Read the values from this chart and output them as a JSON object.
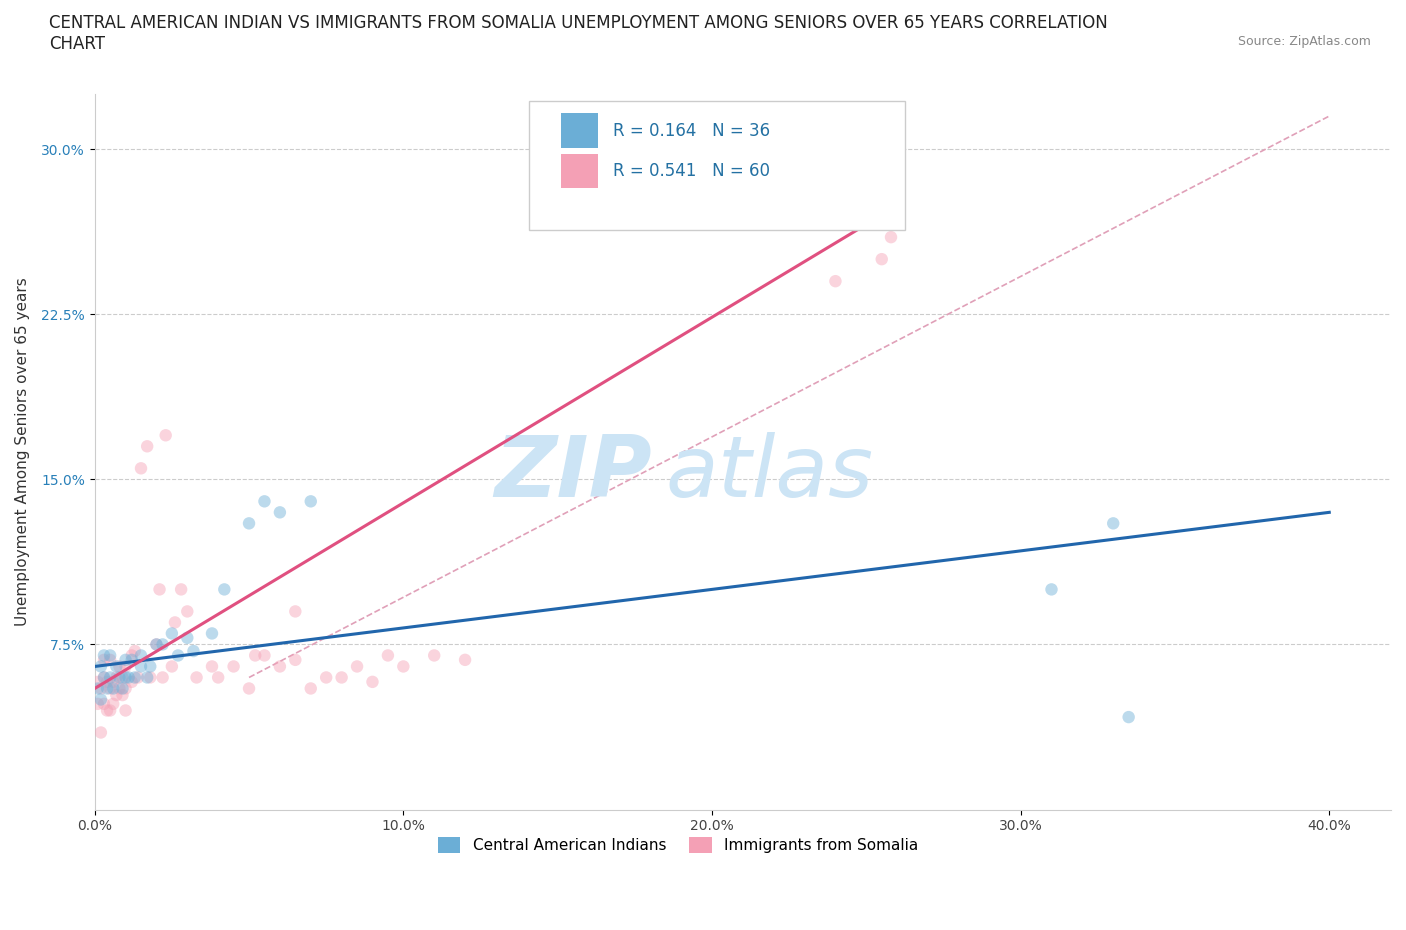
{
  "title_line1": "CENTRAL AMERICAN INDIAN VS IMMIGRANTS FROM SOMALIA UNEMPLOYMENT AMONG SENIORS OVER 65 YEARS CORRELATION",
  "title_line2": "CHART",
  "source": "Source: ZipAtlas.com",
  "ylabel": "Unemployment Among Seniors over 65 years",
  "xlim": [
    0.0,
    0.42
  ],
  "ylim": [
    0.0,
    0.325
  ],
  "xticks": [
    0.0,
    0.1,
    0.2,
    0.3,
    0.4
  ],
  "yticks": [
    0.075,
    0.15,
    0.225,
    0.3
  ],
  "xticklabels": [
    "0.0%",
    "10.0%",
    "20.0%",
    "30.0%",
    "40.0%"
  ],
  "yticklabels": [
    "7.5%",
    "15.0%",
    "22.5%",
    "30.0%"
  ],
  "blue_color": "#6baed6",
  "pink_color": "#f4a0b5",
  "blue_line_color": "#2166ac",
  "pink_line_color": "#e05080",
  "legend_label_blue": "Central American Indians",
  "legend_label_pink": "Immigrants from Somalia",
  "watermark_zip": "ZIP",
  "watermark_atlas": "atlas",
  "blue_scatter_x": [
    0.001,
    0.002,
    0.002,
    0.003,
    0.003,
    0.004,
    0.005,
    0.005,
    0.006,
    0.007,
    0.008,
    0.009,
    0.01,
    0.01,
    0.011,
    0.012,
    0.013,
    0.015,
    0.015,
    0.017,
    0.018,
    0.02,
    0.022,
    0.025,
    0.027,
    0.03,
    0.032,
    0.038,
    0.042,
    0.05,
    0.055,
    0.06,
    0.07,
    0.31,
    0.33,
    0.335
  ],
  "blue_scatter_y": [
    0.055,
    0.065,
    0.05,
    0.06,
    0.07,
    0.055,
    0.06,
    0.07,
    0.055,
    0.065,
    0.06,
    0.055,
    0.06,
    0.068,
    0.06,
    0.068,
    0.06,
    0.07,
    0.065,
    0.06,
    0.065,
    0.075,
    0.075,
    0.08,
    0.07,
    0.078,
    0.072,
    0.08,
    0.1,
    0.13,
    0.14,
    0.135,
    0.14,
    0.1,
    0.13,
    0.042
  ],
  "pink_scatter_x": [
    0.001,
    0.001,
    0.002,
    0.002,
    0.003,
    0.003,
    0.003,
    0.004,
    0.004,
    0.005,
    0.005,
    0.005,
    0.006,
    0.006,
    0.007,
    0.007,
    0.008,
    0.008,
    0.009,
    0.009,
    0.01,
    0.01,
    0.01,
    0.012,
    0.012,
    0.013,
    0.014,
    0.015,
    0.017,
    0.018,
    0.02,
    0.021,
    0.022,
    0.023,
    0.025,
    0.026,
    0.028,
    0.03,
    0.033,
    0.038,
    0.04,
    0.045,
    0.05,
    0.052,
    0.055,
    0.06,
    0.065,
    0.065,
    0.07,
    0.075,
    0.08,
    0.085,
    0.09,
    0.095,
    0.1,
    0.11,
    0.12,
    0.24,
    0.255,
    0.258
  ],
  "pink_scatter_y": [
    0.058,
    0.048,
    0.055,
    0.035,
    0.06,
    0.048,
    0.068,
    0.045,
    0.058,
    0.045,
    0.055,
    0.068,
    0.058,
    0.048,
    0.06,
    0.052,
    0.055,
    0.065,
    0.052,
    0.06,
    0.055,
    0.065,
    0.045,
    0.058,
    0.07,
    0.072,
    0.06,
    0.155,
    0.165,
    0.06,
    0.075,
    0.1,
    0.06,
    0.17,
    0.065,
    0.085,
    0.1,
    0.09,
    0.06,
    0.065,
    0.06,
    0.065,
    0.055,
    0.07,
    0.07,
    0.065,
    0.068,
    0.09,
    0.055,
    0.06,
    0.06,
    0.065,
    0.058,
    0.07,
    0.065,
    0.07,
    0.068,
    0.24,
    0.25,
    0.26
  ],
  "blue_trend_x": [
    0.0,
    0.4
  ],
  "blue_trend_y": [
    0.065,
    0.135
  ],
  "pink_trend_x": [
    0.0,
    0.255
  ],
  "pink_trend_y": [
    0.055,
    0.27
  ],
  "diag_line_x": [
    0.05,
    0.4
  ],
  "diag_line_y": [
    0.06,
    0.315
  ],
  "bg_color": "#ffffff",
  "grid_color": "#cccccc",
  "title_fontsize": 12,
  "axis_label_fontsize": 11,
  "tick_fontsize": 10,
  "scatter_size": 80,
  "scatter_alpha": 0.45,
  "line_width": 2.2
}
